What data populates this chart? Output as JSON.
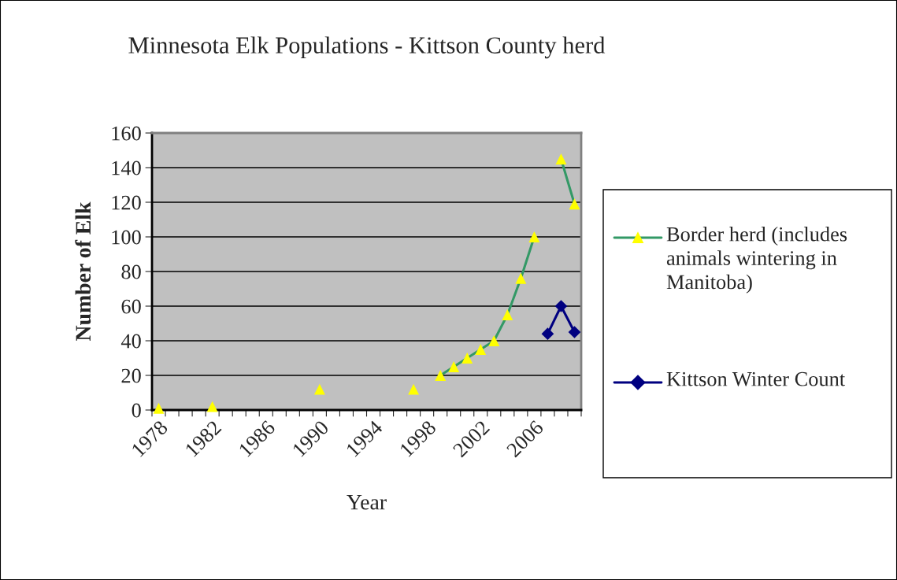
{
  "chart_data": {
    "type": "line",
    "title": "Minnesota Elk Populations - Kittson County herd",
    "xlabel": "Year",
    "ylabel": "Number of Elk",
    "categories": [
      "1978",
      null,
      null,
      null,
      "1982",
      null,
      null,
      null,
      "1986",
      null,
      null,
      null,
      "1990",
      null,
      null,
      null,
      "1994",
      null,
      null,
      null,
      "1998",
      null,
      null,
      null,
      "2002",
      null,
      null,
      null,
      "2006",
      null,
      null,
      null
    ],
    "series": [
      {
        "name": "Border herd (includes animals wintering in Manitoba)",
        "color": "#339966",
        "colors": [
          "#ffff00",
          "#ffff00",
          "#ffff00",
          "#ffff00",
          "#ffff00",
          "#ffff00",
          "#ffff00",
          "#ffff00",
          "#ffff00",
          "#ffff00",
          "#ffff00",
          "#ffff00",
          "#ffff00",
          "#ffff00",
          "#ffff00",
          "#ffff00",
          "#ffff00",
          "#ffff00",
          "#ffff00",
          "#ffff00",
          "#ffff00",
          "#ffff00",
          "#ffff00",
          "#ffff00",
          "#ffff00",
          "#ffff00",
          "#ffff00",
          "#ffff00",
          "#ffff00",
          "#ffff00",
          "#ffff00",
          "#ffff00"
        ],
        "marker": "triangle",
        "values": [
          1,
          null,
          null,
          null,
          2,
          null,
          null,
          null,
          null,
          null,
          null,
          null,
          12,
          null,
          null,
          null,
          null,
          null,
          null,
          12,
          null,
          20,
          25,
          30,
          35,
          40,
          55,
          76,
          100,
          null,
          145,
          119
        ]
      },
      {
        "name": "Kittson Winter Count",
        "color": "#000080",
        "colors": [
          "#000080",
          "#000080",
          "#000080",
          "#000080",
          "#000080",
          "#000080",
          "#000080",
          "#000080",
          "#000080",
          "#000080",
          "#000080",
          "#000080",
          "#000080",
          "#000080",
          "#000080",
          "#000080",
          "#000080",
          "#000080",
          "#000080",
          "#000080",
          "#000080",
          "#000080",
          "#000080",
          "#000080",
          "#000080",
          "#000080",
          "#000080",
          "#000080",
          "#000080",
          "#000080",
          "#000080",
          "#000080"
        ],
        "marker": "diamond",
        "values": [
          null,
          null,
          null,
          null,
          null,
          null,
          null,
          null,
          null,
          null,
          null,
          null,
          null,
          null,
          null,
          null,
          null,
          null,
          null,
          null,
          null,
          null,
          null,
          null,
          null,
          null,
          null,
          null,
          null,
          44,
          60,
          45
        ]
      }
    ],
    "ylim": [
      0,
      160
    ],
    "yticks": [
      0,
      20,
      40,
      60,
      80,
      100,
      120,
      140,
      160
    ],
    "grid": "y",
    "legend": "right"
  }
}
